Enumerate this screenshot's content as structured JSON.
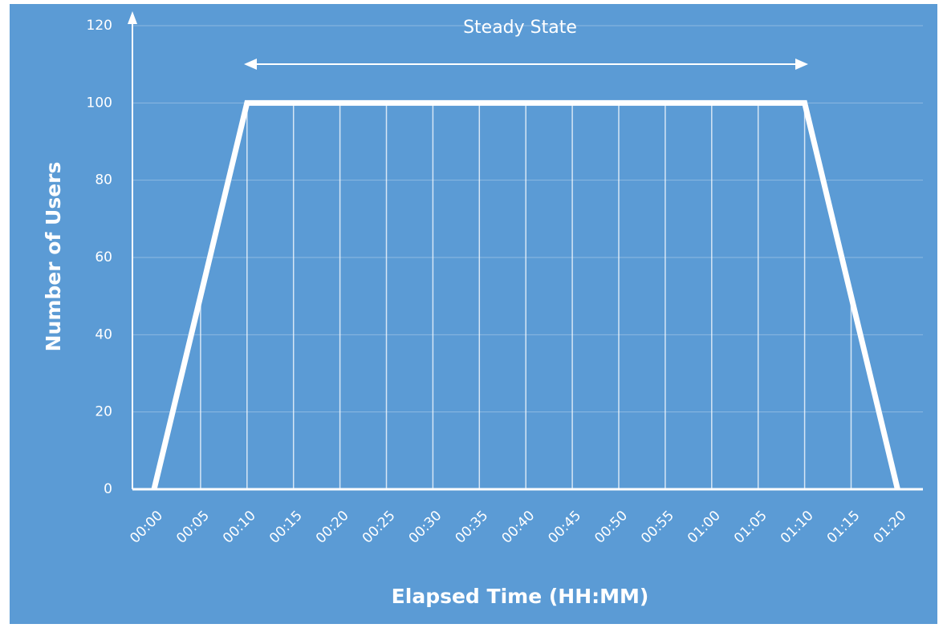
{
  "chart_data": {
    "type": "line",
    "x_label": "Elapsed Time (HH:MM)",
    "y_label": "Number of Users",
    "annotation": "Steady State",
    "categories": [
      "00:00",
      "00:05",
      "00:10",
      "00:15",
      "00:20",
      "00:25",
      "00:30",
      "00:35",
      "00:40",
      "00:45",
      "00:50",
      "00:55",
      "01:00",
      "01:05",
      "01:10",
      "01:15",
      "01:20"
    ],
    "values": [
      0,
      50,
      100,
      100,
      100,
      100,
      100,
      100,
      100,
      100,
      100,
      100,
      100,
      100,
      100,
      50,
      0
    ],
    "color": "#ffffff",
    "ylim": [
      0,
      120
    ],
    "yticks": [
      0,
      20,
      40,
      60,
      80,
      100,
      120
    ],
    "grid": true
  }
}
